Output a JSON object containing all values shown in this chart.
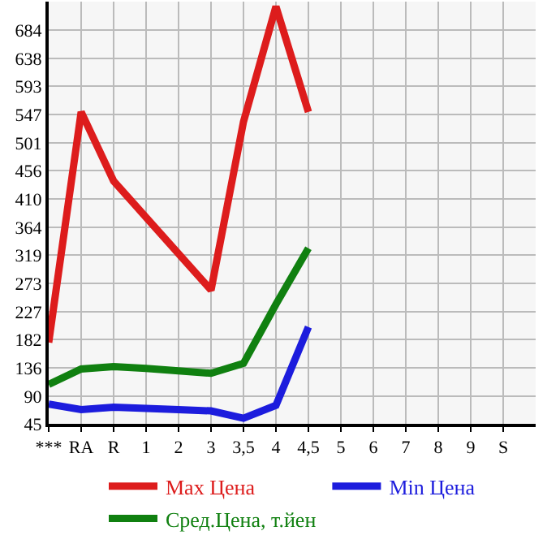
{
  "chart_data": {
    "type": "line",
    "categories": [
      "***",
      "RA",
      "R",
      "1",
      "2",
      "3",
      "3,5",
      "4",
      "4,5",
      "5",
      "6",
      "7",
      "8",
      "9",
      "S",
      null
    ],
    "series": [
      {
        "name": "Max Цена",
        "color": "#dd1c1c",
        "values": [
          177,
          551,
          439,
          380,
          321,
          262,
          535,
          722,
          551,
          null,
          null,
          null,
          null,
          null,
          null,
          null
        ]
      },
      {
        "name": "Min Цена",
        "color": "#1c1cdd",
        "values": [
          77,
          68,
          72,
          70,
          68,
          66,
          54,
          75,
          202,
          null,
          null,
          null,
          null,
          null,
          null,
          null
        ]
      },
      {
        "name": "Сред.Цена, т.йен",
        "color": "#108010",
        "values": [
          109,
          134,
          138,
          135,
          131,
          127,
          143,
          239,
          330,
          null,
          null,
          null,
          null,
          null,
          null,
          null
        ]
      }
    ],
    "ylim": [
      45,
      730
    ],
    "yticks": [
      45,
      90,
      136,
      182,
      227,
      273,
      319,
      364,
      410,
      456,
      501,
      547,
      593,
      638,
      684
    ],
    "grid": true,
    "legend": "bottom",
    "marker": "none",
    "line_style": "solid"
  }
}
